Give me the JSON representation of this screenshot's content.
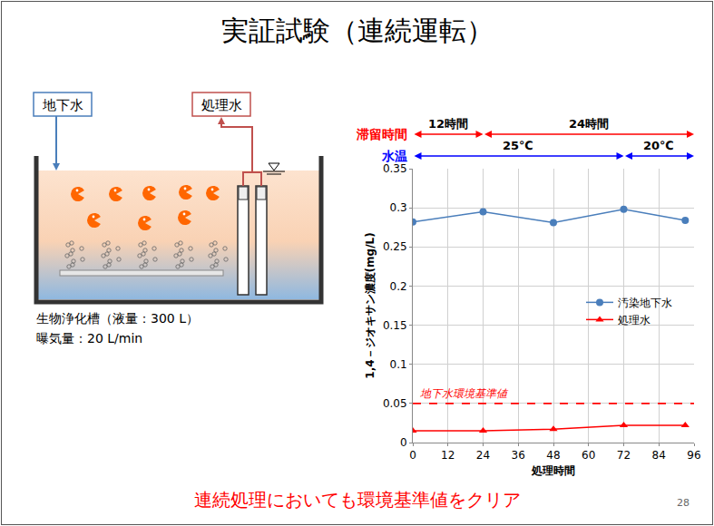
{
  "slide": {
    "title": "実証試験（連続運転）",
    "conclusion": "連続処理においても環境基準値をクリア",
    "page": 28
  },
  "diagram": {
    "inflow_label": "地下水",
    "outflow_label": "処理水",
    "tank_caption": "生物浄化槽（液量：300 L）",
    "aeration_caption": "曝気量：20 L/min"
  },
  "chart_data": {
    "type": "line",
    "x_label": "処理時間",
    "y_label": "1,4－ジオキサン濃度(mg/L)",
    "x": [
      0,
      24,
      48,
      72,
      93
    ],
    "series": [
      {
        "name": "汚染地下水",
        "color": "#4a7ebb",
        "marker": "circle",
        "values": [
          0.282,
          0.295,
          0.281,
          0.298,
          0.284
        ]
      },
      {
        "name": "処理水",
        "color": "#ff0000",
        "marker": "triangle-up",
        "values": [
          0.015,
          0.015,
          0.017,
          0.022,
          0.022
        ]
      }
    ],
    "xlim": [
      0,
      96
    ],
    "xticks": [
      0,
      12,
      24,
      36,
      48,
      60,
      72,
      84,
      96
    ],
    "ylim": [
      0,
      0.35
    ],
    "yticks": [
      0,
      0.05,
      0.1,
      0.15,
      0.2,
      0.25,
      0.3,
      0.35
    ],
    "grid": true,
    "legend": "right",
    "reference_lines": [
      {
        "value": 0.05,
        "label": "地下水環境基準値",
        "color": "#ff0000",
        "line_style": "dash"
      }
    ],
    "phases": [
      {
        "label": "滞留時間",
        "color": "#ff0000",
        "segments": [
          {
            "start": 0,
            "end": 24,
            "text": "12時間"
          },
          {
            "start": 24,
            "end": 96,
            "text": "24時間"
          }
        ]
      },
      {
        "label": "水温",
        "color": "#0000ff",
        "segments": [
          {
            "start": 0,
            "end": 72,
            "text": "25℃"
          },
          {
            "start": 72,
            "end": 96,
            "text": "20℃"
          }
        ]
      }
    ]
  }
}
